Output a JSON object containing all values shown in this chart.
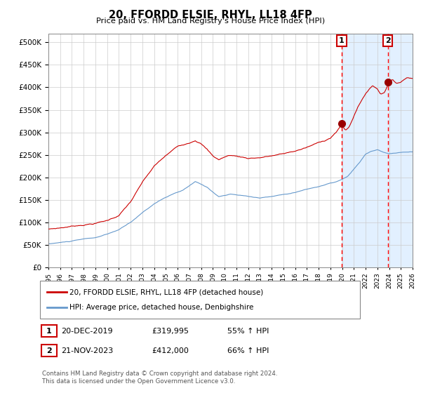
{
  "title": "20, FFORDD ELSIE, RHYL, LL18 4FP",
  "subtitle": "Price paid vs. HM Land Registry's House Price Index (HPI)",
  "legend_line1": "20, FFORDD ELSIE, RHYL, LL18 4FP (detached house)",
  "legend_line2": "HPI: Average price, detached house, Denbighshire",
  "annotation1_date": "20-DEC-2019",
  "annotation1_price": "£319,995",
  "annotation1_hpi": "55% ↑ HPI",
  "annotation2_date": "21-NOV-2023",
  "annotation2_price": "£412,000",
  "annotation2_hpi": "66% ↑ HPI",
  "footer": "Contains HM Land Registry data © Crown copyright and database right 2024.\nThis data is licensed under the Open Government Licence v3.0.",
  "red_line_color": "#CC0000",
  "blue_line_color": "#6699CC",
  "highlight_bg_color": "#DDEEFF",
  "grid_color": "#CCCCCC",
  "annotation_vline_color": "#FF0000",
  "marker_color": "#990000",
  "sale1_x": 2019.96,
  "sale1_y": 319995,
  "sale2_x": 2023.89,
  "sale2_y": 412000,
  "ylim": [
    0,
    520000
  ],
  "xlim_start": 1995,
  "xlim_end": 2026
}
